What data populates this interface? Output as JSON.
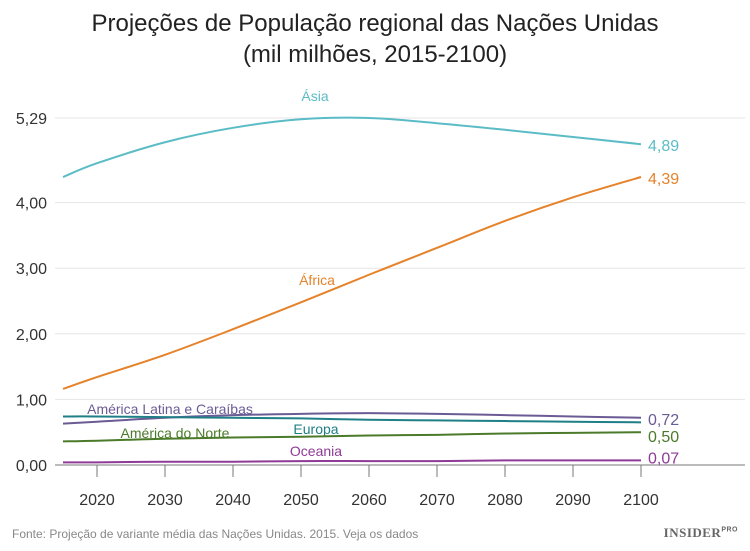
{
  "chart_data": {
    "type": "line",
    "title": "Projeções de População regional das Nações Unidas",
    "subtitle": "(mil milhões, 2015-2100)",
    "xlabel": "",
    "ylabel": "",
    "x": [
      2015,
      2020,
      2030,
      2040,
      2050,
      2060,
      2070,
      2080,
      2090,
      2100
    ],
    "x_ticks": [
      "2020",
      "2030",
      "2040",
      "2050",
      "2060",
      "2070",
      "2080",
      "2090",
      "2100"
    ],
    "y_ticks": [
      "0,00",
      "1,00",
      "2,00",
      "3,00",
      "4,00",
      "5,29"
    ],
    "y_tick_values": [
      0,
      1,
      2,
      3,
      4,
      5.29
    ],
    "xlim": [
      2015,
      2100
    ],
    "ylim": [
      0,
      5.29
    ],
    "grid": "horizontal",
    "series": [
      {
        "name": "Ásia",
        "color": "#5bbcc6",
        "end_label": "4,89",
        "values": [
          4.39,
          4.6,
          4.92,
          5.14,
          5.27,
          5.29,
          5.21,
          5.11,
          5.0,
          4.89
        ]
      },
      {
        "name": "África",
        "color": "#e5822a",
        "end_label": "4,39",
        "values": [
          1.16,
          1.34,
          1.68,
          2.07,
          2.48,
          2.9,
          3.31,
          3.72,
          4.08,
          4.39
        ]
      },
      {
        "name": "América Latina e Caraíbas",
        "color": "#6b5b95",
        "end_label": "0,72",
        "values": [
          0.63,
          0.66,
          0.72,
          0.76,
          0.78,
          0.79,
          0.78,
          0.76,
          0.74,
          0.72
        ]
      },
      {
        "name": "Europa",
        "color": "#1f7f86",
        "end_label": "",
        "values": [
          0.74,
          0.74,
          0.73,
          0.72,
          0.71,
          0.69,
          0.68,
          0.67,
          0.66,
          0.65
        ]
      },
      {
        "name": "América do Norte",
        "color": "#4b7b2a",
        "end_label": "0,50",
        "values": [
          0.36,
          0.37,
          0.4,
          0.42,
          0.43,
          0.45,
          0.46,
          0.48,
          0.49,
          0.5
        ]
      },
      {
        "name": "Oceania",
        "color": "#8e3a96",
        "end_label": "0,07",
        "values": [
          0.04,
          0.04,
          0.05,
          0.05,
          0.06,
          0.06,
          0.06,
          0.07,
          0.07,
          0.07
        ]
      }
    ]
  },
  "footer": {
    "source": "Fonte: Projeção de variante média das Nações Unidas. 2015. Veja os dados",
    "brand": "INSIDER",
    "brand_sup": "PRO"
  }
}
